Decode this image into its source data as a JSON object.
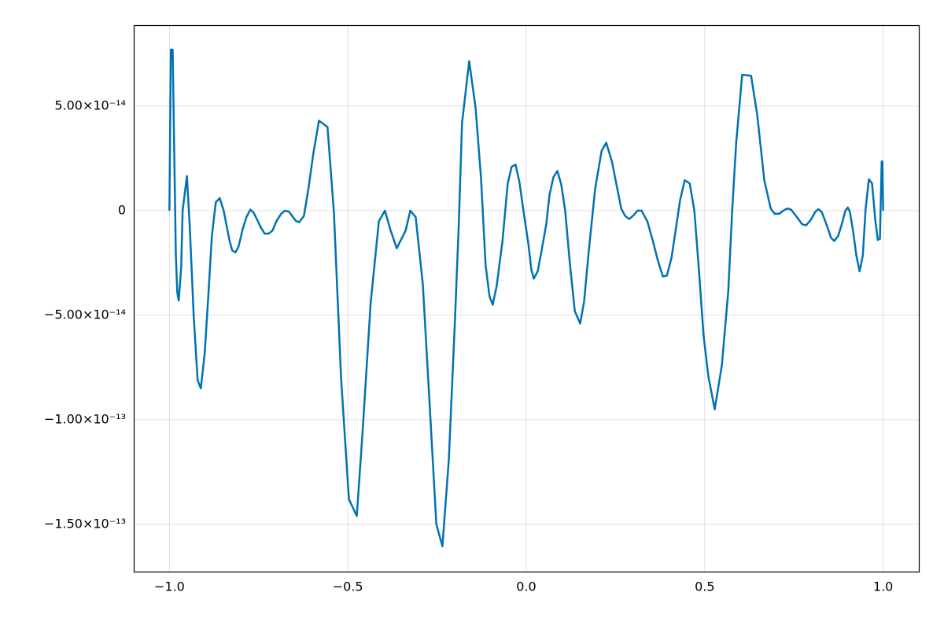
{
  "chart_data": {
    "type": "line",
    "color": "#0072b2",
    "grid": true,
    "xlim": [
      -1.1,
      1.1
    ],
    "ylim": [
      -1.726e-13,
      8.87e-14
    ],
    "xticks": [
      {
        "value": -1.0,
        "label": "−1.0"
      },
      {
        "value": -0.5,
        "label": "−0.5"
      },
      {
        "value": 0.0,
        "label": "0.0"
      },
      0.5,
      {
        "value": 1.0,
        "label": "1.0"
      }
    ],
    "yticks": [
      {
        "value": -1.5e-13,
        "label": "−1.50×10⁻¹³"
      },
      {
        "value": -1e-13,
        "label": "−1.00×10⁻¹³"
      },
      {
        "value": -5e-14,
        "label": "−5.00×10⁻¹⁴"
      },
      0,
      {
        "value": 5e-14,
        "label": "5.00×10⁻¹⁴"
      }
    ],
    "x": [
      -1.0,
      -0.996,
      -0.991,
      -0.982,
      -0.978,
      -0.974,
      -0.967,
      -0.963,
      -0.951,
      -0.943,
      -0.932,
      -0.921,
      -0.912,
      -0.901,
      -0.89,
      -0.881,
      -0.87,
      -0.859,
      -0.848,
      -0.832,
      -0.824,
      -0.815,
      -0.806,
      -0.795,
      -0.784,
      -0.773,
      -0.764,
      -0.755,
      -0.744,
      -0.733,
      -0.722,
      -0.711,
      -0.7,
      -0.687,
      -0.676,
      -0.665,
      -0.654,
      -0.645,
      -0.636,
      -0.623,
      -0.61,
      -0.597,
      -0.581,
      -0.557,
      -0.539,
      -0.519,
      -0.497,
      -0.475,
      -0.458,
      -0.436,
      -0.413,
      -0.396,
      -0.381,
      -0.363,
      -0.338,
      -0.325,
      -0.31,
      -0.29,
      -0.272,
      -0.252,
      -0.235,
      -0.217,
      -0.2,
      -0.189,
      -0.18,
      -0.16,
      -0.142,
      -0.127,
      -0.114,
      -0.103,
      -0.094,
      -0.083,
      -0.067,
      -0.052,
      -0.041,
      -0.03,
      -0.019,
      -0.008,
      0.006,
      0.014,
      0.021,
      0.032,
      0.043,
      0.056,
      0.065,
      0.076,
      0.087,
      0.098,
      0.109,
      0.122,
      0.136,
      0.151,
      0.162,
      0.175,
      0.193,
      0.211,
      0.224,
      0.24,
      0.255,
      0.266,
      0.277,
      0.288,
      0.299,
      0.312,
      0.323,
      0.339,
      0.354,
      0.369,
      0.383,
      0.394,
      0.407,
      0.418,
      0.431,
      0.444,
      0.458,
      0.471,
      0.484,
      0.497,
      0.51,
      0.528,
      0.548,
      0.566,
      0.577,
      0.588,
      0.605,
      0.63,
      0.647,
      0.667,
      0.685,
      0.696,
      0.709,
      0.72,
      0.731,
      0.742,
      0.758,
      0.773,
      0.784,
      0.797,
      0.81,
      0.819,
      0.828,
      0.841,
      0.854,
      0.863,
      0.874,
      0.885,
      0.894,
      0.901,
      0.907,
      0.916,
      0.925,
      0.934,
      0.943,
      0.951,
      0.96,
      0.969,
      0.978,
      0.985,
      0.991,
      0.996,
      0.998,
      1.0
    ],
    "values": [
      0,
      7.7e-14,
      7.7e-14,
      -2.1e-14,
      -3.9e-14,
      -4.3e-14,
      -2.7e-14,
      0,
      1.65e-14,
      -7.5e-15,
      -5e-14,
      -8.1e-14,
      -8.5e-14,
      -6.8e-14,
      -3.8e-14,
      -1.2e-14,
      4e-15,
      6e-15,
      0,
      -1.4e-14,
      -1.9e-14,
      -2e-14,
      -1.7e-14,
      -9e-15,
      -3e-15,
      5e-16,
      -1e-15,
      -4e-15,
      -8e-15,
      -1.1e-14,
      -1.1e-14,
      -9.5e-15,
      -5e-15,
      -1.5e-15,
      0,
      -5e-16,
      -3e-15,
      -5e-15,
      -5.5e-15,
      -2.5e-15,
      1.1e-14,
      2.7e-14,
      4.3e-14,
      4e-14,
      -1e-15,
      -8e-14,
      -1.38e-13,
      -1.46e-13,
      -1.04e-13,
      -4.4e-14,
      -5e-15,
      0,
      -9e-15,
      -1.8e-14,
      -9.5e-15,
      0,
      -3e-15,
      -3.5e-14,
      -8.9e-14,
      -1.5e-13,
      -1.605e-13,
      -1.19e-13,
      -5.3e-14,
      -6e-15,
      4.2e-14,
      7.15e-14,
      4.9e-14,
      1.6e-14,
      -2.6e-14,
      -4.1e-14,
      -4.5e-14,
      -3.6e-14,
      -1.5e-14,
      1.3e-14,
      2.1e-14,
      2.2e-14,
      1.35e-14,
      0,
      -1.6e-14,
      -2.8e-14,
      -3.25e-14,
      -2.9e-14,
      -1.9e-14,
      -6.5e-15,
      7.5e-15,
      1.6e-14,
      1.9e-14,
      1.25e-14,
      0,
      -2.5e-14,
      -4.8e-14,
      -5.4e-14,
      -4.35e-14,
      -1.95e-14,
      1.05e-14,
      2.85e-14,
      3.25e-14,
      2.35e-14,
      1.05e-14,
      1e-15,
      -2.5e-15,
      -4e-15,
      -2.5e-15,
      0,
      0,
      -5e-15,
      -1.4e-14,
      -2.4e-14,
      -3.15e-14,
      -3.1e-14,
      -2.25e-14,
      -1e-14,
      5e-15,
      1.45e-14,
      1.3e-14,
      0,
      -2.9e-14,
      -6e-14,
      -7.9e-14,
      -9.5e-14,
      -7.4e-14,
      -3.85e-14,
      0,
      3.2e-14,
      6.5e-14,
      6.45e-14,
      4.6e-14,
      1.45e-14,
      1e-15,
      -1.5e-15,
      -1.5e-15,
      0,
      1e-15,
      5e-16,
      -3e-15,
      -6.5e-15,
      -7e-15,
      -4.5e-15,
      -5e-16,
      7e-16,
      -7e-16,
      -6.5e-15,
      -1.3e-14,
      -1.45e-14,
      -1.2e-14,
      -6e-15,
      0,
      1.5e-15,
      -7e-16,
      -1e-14,
      -2.15e-14,
      -2.9e-14,
      -2.15e-14,
      1e-15,
      1.5e-14,
      1.3e-14,
      -4.5e-15,
      -1.4e-14,
      -1.35e-14,
      2.35e-14,
      2.35e-14,
      0
    ]
  }
}
